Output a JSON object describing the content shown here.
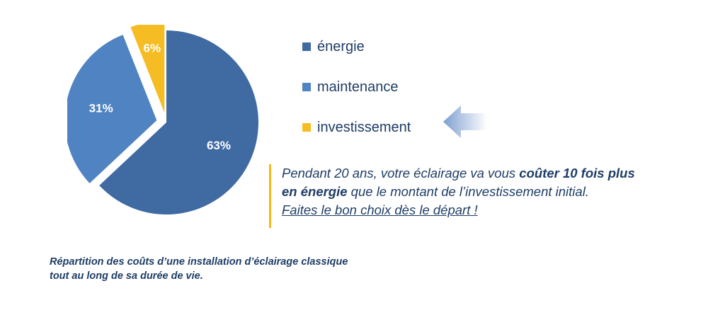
{
  "chart_data": {
    "type": "pie",
    "categories": [
      "énergie",
      "maintenance",
      "investissement"
    ],
    "values": [
      63,
      31,
      6
    ],
    "data_labels": [
      "63%",
      "31%",
      "6%"
    ],
    "colors": [
      "#3f6aa2",
      "#5083c1",
      "#f5bd23"
    ],
    "exploded": [
      "maintenance",
      "investissement"
    ],
    "legend_position": "right"
  },
  "note": {
    "part1": "Pendant 20 ans, votre éclairage va vous ",
    "bold1": "coûter 10 fois plus",
    "bold2": "en énergie",
    "part2": " que le montant de l’investissement initial.",
    "part3": "Faites le bon choix dès le départ !"
  },
  "caption": {
    "line1": "Répartition des coûts d’une installation d’éclairage classique",
    "line2": "tout au long de sa durée de vie."
  },
  "colors": {
    "text": "#1f3d66",
    "accent_bar": "#f2b91c",
    "arrow": "#7f9fd0"
  }
}
